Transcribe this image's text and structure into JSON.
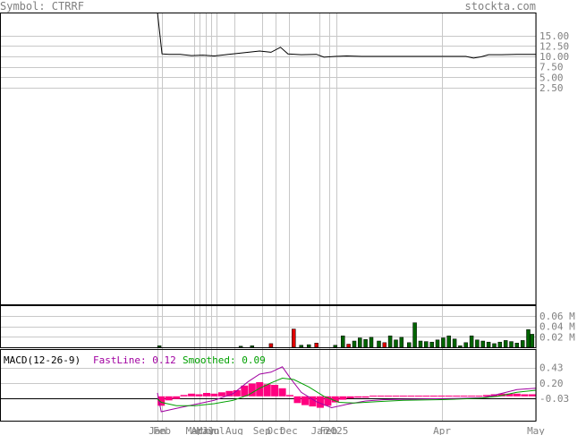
{
  "header": {
    "symbol_text": "Symbol: CTRRF",
    "brand_text": "stockta.com"
  },
  "colors": {
    "text": "#808080",
    "frame": "#000000",
    "grid": "#c8c8c8",
    "price_line": "#000000",
    "vol_up": "#006400",
    "vol_down": "#e00000",
    "hist": "#ff0080",
    "macd_fast": "#a000a0",
    "macd_smooth": "#00a000"
  },
  "chart_data": {
    "type": "line",
    "title": "Symbol: CTRRF",
    "price": {
      "y_ticks": [
        "15.00",
        "12.50",
        "10.00",
        "7.50",
        "5.00",
        "2.50"
      ],
      "y_tick_values": [
        15,
        12.5,
        10,
        7.5,
        5,
        2.5
      ],
      "series": [
        {
          "t": 0.0,
          "v": 60
        },
        {
          "t": 0.012,
          "v": 10.6
        },
        {
          "t": 0.03,
          "v": 10.5
        },
        {
          "t": 0.06,
          "v": 10.5
        },
        {
          "t": 0.09,
          "v": 10.2
        },
        {
          "t": 0.12,
          "v": 10.3
        },
        {
          "t": 0.15,
          "v": 10.1
        },
        {
          "t": 0.18,
          "v": 10.4
        },
        {
          "t": 0.21,
          "v": 10.7
        },
        {
          "t": 0.24,
          "v": 11.0
        },
        {
          "t": 0.27,
          "v": 11.3
        },
        {
          "t": 0.3,
          "v": 11.0
        },
        {
          "t": 0.325,
          "v": 12.2
        },
        {
          "t": 0.345,
          "v": 10.6
        },
        {
          "t": 0.38,
          "v": 10.4
        },
        {
          "t": 0.42,
          "v": 10.5
        },
        {
          "t": 0.44,
          "v": 9.8
        },
        {
          "t": 0.47,
          "v": 10.0
        },
        {
          "t": 0.5,
          "v": 10.1
        },
        {
          "t": 0.54,
          "v": 10.0
        },
        {
          "t": 0.6,
          "v": 10.0
        },
        {
          "t": 0.66,
          "v": 10.0
        },
        {
          "t": 0.72,
          "v": 10.0
        },
        {
          "t": 0.78,
          "v": 10.0
        },
        {
          "t": 0.815,
          "v": 10.0
        },
        {
          "t": 0.835,
          "v": 9.6
        },
        {
          "t": 0.855,
          "v": 9.9
        },
        {
          "t": 0.875,
          "v": 10.4
        },
        {
          "t": 0.91,
          "v": 10.4
        },
        {
          "t": 0.95,
          "v": 10.5
        },
        {
          "t": 1.0,
          "v": 10.5
        }
      ]
    },
    "volume": {
      "y_ticks": [
        "0.06 M",
        "0.04 M",
        "0.02 M"
      ],
      "y_tick_values": [
        0.06,
        0.04,
        0.02
      ],
      "bars": [
        {
          "t": 0.005,
          "v": 0.003,
          "dir": "up"
        },
        {
          "t": 0.22,
          "v": 0.002,
          "dir": "up"
        },
        {
          "t": 0.25,
          "v": 0.003,
          "dir": "up"
        },
        {
          "t": 0.3,
          "v": 0.007,
          "dir": "down"
        },
        {
          "t": 0.36,
          "v": 0.035,
          "dir": "down"
        },
        {
          "t": 0.38,
          "v": 0.004,
          "dir": "up"
        },
        {
          "t": 0.4,
          "v": 0.005,
          "dir": "up"
        },
        {
          "t": 0.42,
          "v": 0.008,
          "dir": "down"
        },
        {
          "t": 0.47,
          "v": 0.004,
          "dir": "up"
        },
        {
          "t": 0.49,
          "v": 0.022,
          "dir": "up"
        },
        {
          "t": 0.505,
          "v": 0.006,
          "dir": "down"
        },
        {
          "t": 0.52,
          "v": 0.012,
          "dir": "up"
        },
        {
          "t": 0.535,
          "v": 0.018,
          "dir": "up"
        },
        {
          "t": 0.55,
          "v": 0.015,
          "dir": "up"
        },
        {
          "t": 0.565,
          "v": 0.019,
          "dir": "up"
        },
        {
          "t": 0.585,
          "v": 0.012,
          "dir": "up"
        },
        {
          "t": 0.6,
          "v": 0.009,
          "dir": "down"
        },
        {
          "t": 0.615,
          "v": 0.022,
          "dir": "up"
        },
        {
          "t": 0.63,
          "v": 0.014,
          "dir": "up"
        },
        {
          "t": 0.645,
          "v": 0.019,
          "dir": "up"
        },
        {
          "t": 0.665,
          "v": 0.009,
          "dir": "up"
        },
        {
          "t": 0.68,
          "v": 0.047,
          "dir": "up"
        },
        {
          "t": 0.695,
          "v": 0.012,
          "dir": "up"
        },
        {
          "t": 0.71,
          "v": 0.011,
          "dir": "up"
        },
        {
          "t": 0.725,
          "v": 0.01,
          "dir": "up"
        },
        {
          "t": 0.74,
          "v": 0.014,
          "dir": "up"
        },
        {
          "t": 0.755,
          "v": 0.018,
          "dir": "up"
        },
        {
          "t": 0.77,
          "v": 0.022,
          "dir": "up"
        },
        {
          "t": 0.785,
          "v": 0.016,
          "dir": "up"
        },
        {
          "t": 0.8,
          "v": 0.003,
          "dir": "up"
        },
        {
          "t": 0.815,
          "v": 0.009,
          "dir": "up"
        },
        {
          "t": 0.83,
          "v": 0.022,
          "dir": "up"
        },
        {
          "t": 0.845,
          "v": 0.014,
          "dir": "up"
        },
        {
          "t": 0.86,
          "v": 0.012,
          "dir": "up"
        },
        {
          "t": 0.875,
          "v": 0.01,
          "dir": "up"
        },
        {
          "t": 0.89,
          "v": 0.007,
          "dir": "up"
        },
        {
          "t": 0.905,
          "v": 0.01,
          "dir": "up"
        },
        {
          "t": 0.92,
          "v": 0.013,
          "dir": "up"
        },
        {
          "t": 0.935,
          "v": 0.011,
          "dir": "up"
        },
        {
          "t": 0.95,
          "v": 0.008,
          "dir": "up"
        },
        {
          "t": 0.965,
          "v": 0.013,
          "dir": "up"
        },
        {
          "t": 0.98,
          "v": 0.034,
          "dir": "up"
        },
        {
          "t": 0.99,
          "v": 0.025,
          "dir": "up"
        }
      ]
    },
    "macd": {
      "label": "MACD(12-26-9)",
      "fast_label": "FastLine: 0.12",
      "smooth_label": "Smoothed: 0.09",
      "y_ticks": [
        "0.43",
        "0.20",
        "-0.03"
      ],
      "y_tick_values": [
        0.43,
        0.2,
        -0.03
      ],
      "fast": [
        {
          "t": 0.0,
          "v": 0.05
        },
        {
          "t": 0.01,
          "v": -0.23
        },
        {
          "t": 0.05,
          "v": -0.18
        },
        {
          "t": 0.1,
          "v": -0.12
        },
        {
          "t": 0.15,
          "v": -0.06
        },
        {
          "t": 0.2,
          "v": 0.04
        },
        {
          "t": 0.24,
          "v": 0.22
        },
        {
          "t": 0.27,
          "v": 0.33
        },
        {
          "t": 0.3,
          "v": 0.36
        },
        {
          "t": 0.33,
          "v": 0.44
        },
        {
          "t": 0.35,
          "v": 0.28
        },
        {
          "t": 0.38,
          "v": 0.06
        },
        {
          "t": 0.42,
          "v": -0.08
        },
        {
          "t": 0.46,
          "v": -0.17
        },
        {
          "t": 0.5,
          "v": -0.12
        },
        {
          "t": 0.55,
          "v": -0.07
        },
        {
          "t": 0.6,
          "v": -0.05
        },
        {
          "t": 0.7,
          "v": -0.04
        },
        {
          "t": 0.8,
          "v": -0.03
        },
        {
          "t": 0.86,
          "v": -0.02
        },
        {
          "t": 0.9,
          "v": 0.03
        },
        {
          "t": 0.95,
          "v": 0.1
        },
        {
          "t": 1.0,
          "v": 0.12
        }
      ],
      "smooth": [
        {
          "t": 0.0,
          "v": -0.04
        },
        {
          "t": 0.01,
          "v": -0.09
        },
        {
          "t": 0.05,
          "v": -0.14
        },
        {
          "t": 0.1,
          "v": -0.14
        },
        {
          "t": 0.15,
          "v": -0.11
        },
        {
          "t": 0.2,
          "v": -0.06
        },
        {
          "t": 0.24,
          "v": 0.02
        },
        {
          "t": 0.27,
          "v": 0.12
        },
        {
          "t": 0.3,
          "v": 0.2
        },
        {
          "t": 0.33,
          "v": 0.27
        },
        {
          "t": 0.36,
          "v": 0.25
        },
        {
          "t": 0.4,
          "v": 0.14
        },
        {
          "t": 0.44,
          "v": 0.0
        },
        {
          "t": 0.48,
          "v": -0.09
        },
        {
          "t": 0.52,
          "v": -0.1
        },
        {
          "t": 0.58,
          "v": -0.08
        },
        {
          "t": 0.65,
          "v": -0.06
        },
        {
          "t": 0.75,
          "v": -0.05
        },
        {
          "t": 0.85,
          "v": -0.03
        },
        {
          "t": 0.9,
          "v": 0.0
        },
        {
          "t": 0.95,
          "v": 0.06
        },
        {
          "t": 1.0,
          "v": 0.09
        }
      ],
      "hist": [
        {
          "t": 0.01,
          "v": -0.14
        },
        {
          "t": 0.03,
          "v": -0.06
        },
        {
          "t": 0.05,
          "v": -0.04
        },
        {
          "t": 0.07,
          "v": 0.02
        },
        {
          "t": 0.09,
          "v": 0.04
        },
        {
          "t": 0.11,
          "v": 0.03
        },
        {
          "t": 0.13,
          "v": 0.05
        },
        {
          "t": 0.15,
          "v": 0.04
        },
        {
          "t": 0.17,
          "v": 0.06
        },
        {
          "t": 0.19,
          "v": 0.08
        },
        {
          "t": 0.21,
          "v": 0.09
        },
        {
          "t": 0.23,
          "v": 0.16
        },
        {
          "t": 0.25,
          "v": 0.19
        },
        {
          "t": 0.27,
          "v": 0.21
        },
        {
          "t": 0.29,
          "v": 0.18
        },
        {
          "t": 0.31,
          "v": 0.17
        },
        {
          "t": 0.33,
          "v": 0.12
        },
        {
          "t": 0.35,
          "v": 0.02
        },
        {
          "t": 0.37,
          "v": -0.1
        },
        {
          "t": 0.39,
          "v": -0.13
        },
        {
          "t": 0.41,
          "v": -0.15
        },
        {
          "t": 0.43,
          "v": -0.17
        },
        {
          "t": 0.45,
          "v": -0.14
        },
        {
          "t": 0.47,
          "v": -0.09
        },
        {
          "t": 0.49,
          "v": -0.05
        },
        {
          "t": 0.51,
          "v": -0.03
        },
        {
          "t": 0.53,
          "v": -0.02
        },
        {
          "t": 0.55,
          "v": -0.02
        },
        {
          "t": 0.57,
          "v": 0.01
        },
        {
          "t": 0.59,
          "v": 0.01
        },
        {
          "t": 0.61,
          "v": 0.01
        },
        {
          "t": 0.63,
          "v": 0.01
        },
        {
          "t": 0.65,
          "v": 0.01
        },
        {
          "t": 0.67,
          "v": 0.01
        },
        {
          "t": 0.69,
          "v": 0.01
        },
        {
          "t": 0.71,
          "v": 0.01
        },
        {
          "t": 0.73,
          "v": 0.01
        },
        {
          "t": 0.75,
          "v": 0.01
        },
        {
          "t": 0.77,
          "v": 0.01
        },
        {
          "t": 0.79,
          "v": 0.01
        },
        {
          "t": 0.81,
          "v": 0.01
        },
        {
          "t": 0.83,
          "v": 0.01
        },
        {
          "t": 0.85,
          "v": 0.01
        },
        {
          "t": 0.87,
          "v": 0.02
        },
        {
          "t": 0.89,
          "v": 0.03
        },
        {
          "t": 0.91,
          "v": 0.04
        },
        {
          "t": 0.93,
          "v": 0.04
        },
        {
          "t": 0.95,
          "v": 0.04
        },
        {
          "t": 0.97,
          "v": 0.03
        },
        {
          "t": 0.99,
          "v": 0.03
        }
      ]
    },
    "x_ticks": [
      {
        "label": "Jan",
        "t": 0.0
      },
      {
        "label": "Feb",
        "t": 0.012
      },
      {
        "label": "Mar",
        "t": 0.098
      },
      {
        "label": "Apr",
        "t": 0.112
      },
      {
        "label": "May",
        "t": 0.127
      },
      {
        "label": "Jun",
        "t": 0.141
      },
      {
        "label": "Jul",
        "t": 0.155
      },
      {
        "label": "Aug",
        "t": 0.203
      },
      {
        "label": "Sep",
        "t": 0.276
      },
      {
        "label": "Oct",
        "t": 0.313
      },
      {
        "label": "Dec",
        "t": 0.347
      },
      {
        "label": "Jan",
        "t": 0.429
      },
      {
        "label": "Feb",
        "t": 0.453
      },
      {
        "label": "2025",
        "t": 0.473
      },
      {
        "label": "Apr",
        "t": 0.752
      },
      {
        "label": "May",
        "t": 1.0
      }
    ],
    "grid": true
  }
}
